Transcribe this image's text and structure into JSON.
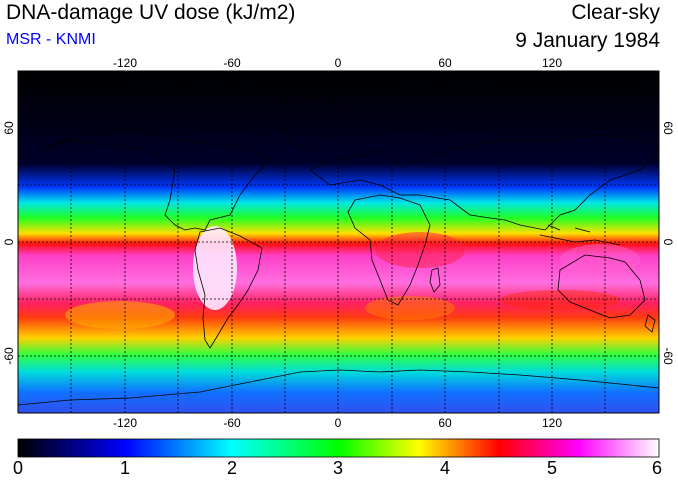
{
  "header": {
    "title": "DNA-damage UV dose (kJ/m2)",
    "source": "MSR - KNMI",
    "condition": "Clear-sky",
    "date": "9 January 1984"
  },
  "map": {
    "lon_ticks": [
      "-120",
      "-60",
      "0",
      "60",
      "120"
    ],
    "lat_ticks": [
      "60",
      "0",
      "-60"
    ]
  },
  "colorbar": {
    "min": 0,
    "max": 6,
    "labels": [
      "0",
      "1",
      "2",
      "3",
      "4",
      "5",
      "6"
    ],
    "stops": [
      "#000000",
      "#0000ff",
      "#00ffff",
      "#00ff00",
      "#ffff00",
      "#ff0000",
      "#ff00ff",
      "#ffffff"
    ]
  }
}
